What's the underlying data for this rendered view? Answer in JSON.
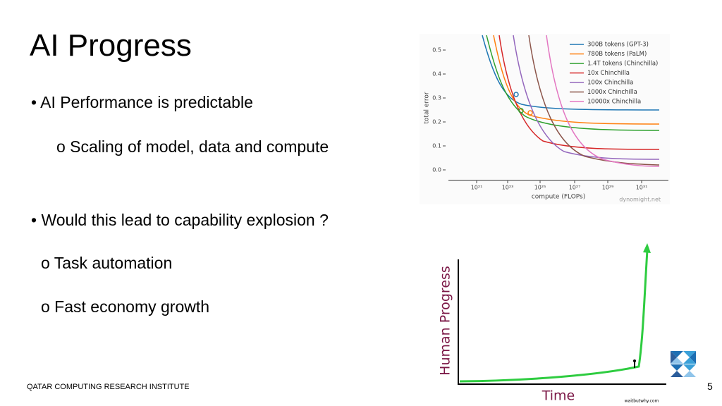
{
  "header": {
    "title": "AI Progress"
  },
  "bullets": [
    {
      "text": "• AI Performance is predictable"
    },
    {
      "text": "o Scaling of model, data and compute"
    },
    {
      "text": "•  Would this lead to capability explosion ?"
    },
    {
      "text": "o Task automation"
    },
    {
      "text": "o Fast economy growth"
    }
  ],
  "scaling_figure": {
    "y_label": "total error",
    "x_label": "compute (FLOPs)",
    "yticks": [
      "0.5",
      "0.4",
      "0.3",
      "0.2",
      "0.1",
      "0.0"
    ],
    "xticks": [
      "10²¹",
      "10²³",
      "10²⁵",
      "10²⁷",
      "10²⁹",
      "10³¹"
    ],
    "legend": [
      "300B tokens (GPT-3)",
      "780B tokens (PaLM)",
      "1.4T tokens (Chinchilla)",
      "10x Chinchilla",
      "100x Chinchilla",
      "1000x Chinchilla",
      "10000x Chinchilla"
    ],
    "source": "dynomight.net"
  },
  "progress_figure": {
    "y_label": "Human Progress",
    "x_label": "Time",
    "source": "waitbutwhy.com"
  },
  "footer": {
    "institute": "QATAR COMPUTING RESEARCH INSTITUTE",
    "page": "5"
  }
}
